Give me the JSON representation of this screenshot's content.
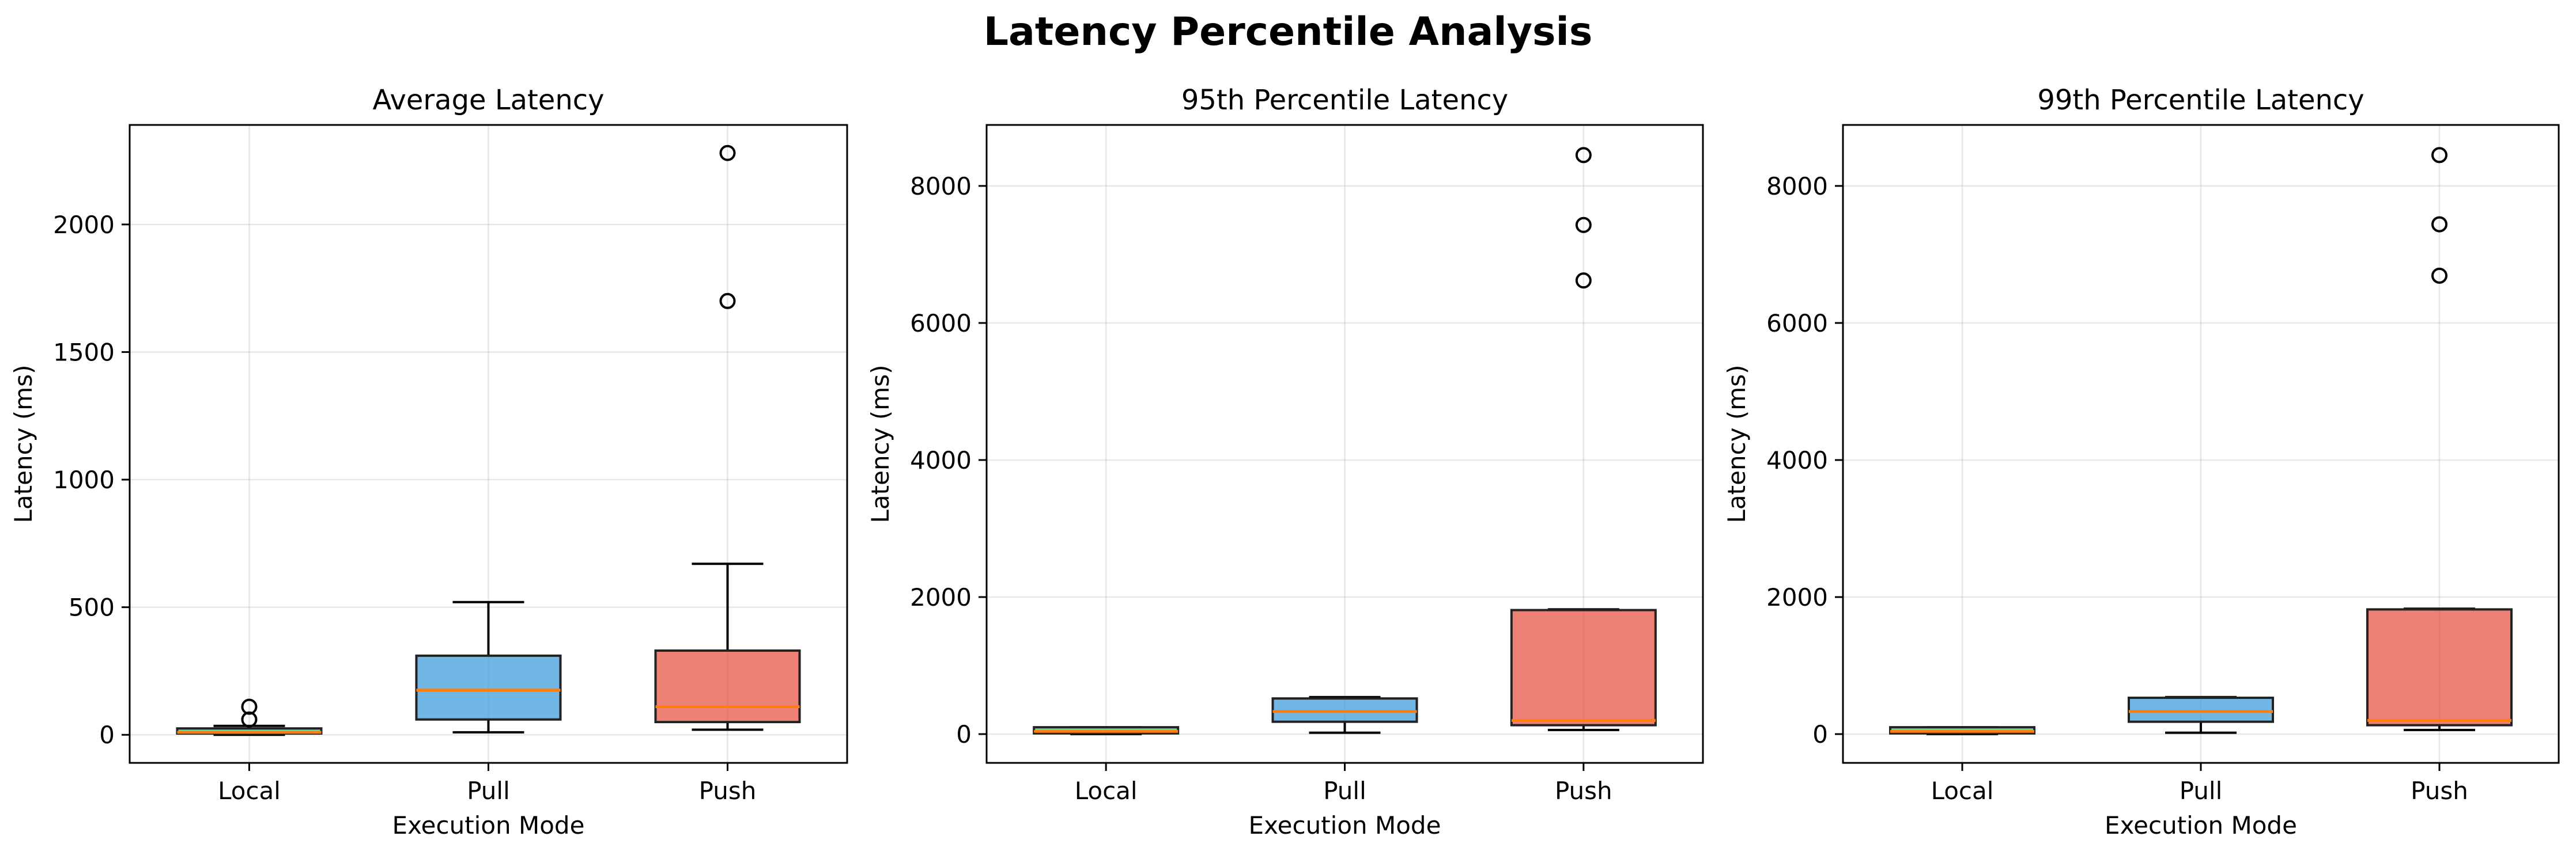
{
  "figure": {
    "title": "Latency Percentile Analysis"
  },
  "colors": {
    "Local": "#2ecc71",
    "Pull": "#3498db",
    "Push": "#e74c3c",
    "median": "#ff7f0e"
  },
  "chart_data": [
    {
      "type": "box",
      "title": "Average Latency",
      "xlabel": "Execution Mode",
      "ylabel": "Latency (ms)",
      "categories": [
        "Local",
        "Pull",
        "Push"
      ],
      "ylim": [
        -110,
        2390
      ],
      "yticks": [
        0,
        500,
        1000,
        1500,
        2000
      ],
      "grid": true,
      "boxes": [
        {
          "name": "Local",
          "whislo": 0,
          "q1": 5,
          "med": 10,
          "q3": 25,
          "whishi": 35,
          "fliers": [
            60,
            110
          ]
        },
        {
          "name": "Pull",
          "whislo": 10,
          "q1": 60,
          "med": 175,
          "q3": 310,
          "whishi": 520,
          "fliers": []
        },
        {
          "name": "Push",
          "whislo": 20,
          "q1": 50,
          "med": 110,
          "q3": 330,
          "whishi": 670,
          "fliers": [
            1700,
            2280
          ]
        }
      ]
    },
    {
      "type": "box",
      "title": "95th Percentile Latency",
      "xlabel": "Execution Mode",
      "ylabel": "Latency (ms)",
      "categories": [
        "Local",
        "Pull",
        "Push"
      ],
      "ylim": [
        -420,
        8890
      ],
      "yticks": [
        0,
        2000,
        4000,
        6000,
        8000
      ],
      "grid": true,
      "boxes": [
        {
          "name": "Local",
          "whislo": 0,
          "q1": 10,
          "med": 40,
          "q3": 100,
          "whishi": 100,
          "fliers": []
        },
        {
          "name": "Pull",
          "whislo": 20,
          "q1": 180,
          "med": 330,
          "q3": 520,
          "whishi": 540,
          "fliers": []
        },
        {
          "name": "Push",
          "whislo": 60,
          "q1": 130,
          "med": 200,
          "q3": 1810,
          "whishi": 1820,
          "fliers": [
            6620,
            7430,
            8450
          ]
        }
      ]
    },
    {
      "type": "box",
      "title": "99th Percentile Latency",
      "xlabel": "Execution Mode",
      "ylabel": "Latency (ms)",
      "categories": [
        "Local",
        "Pull",
        "Push"
      ],
      "ylim": [
        -420,
        8890
      ],
      "yticks": [
        0,
        2000,
        4000,
        6000,
        8000
      ],
      "grid": true,
      "boxes": [
        {
          "name": "Local",
          "whislo": 0,
          "q1": 10,
          "med": 40,
          "q3": 100,
          "whishi": 100,
          "fliers": []
        },
        {
          "name": "Pull",
          "whislo": 20,
          "q1": 180,
          "med": 330,
          "q3": 530,
          "whishi": 540,
          "fliers": []
        },
        {
          "name": "Push",
          "whislo": 60,
          "q1": 130,
          "med": 200,
          "q3": 1820,
          "whishi": 1830,
          "fliers": [
            6690,
            7440,
            8450
          ]
        }
      ]
    }
  ]
}
